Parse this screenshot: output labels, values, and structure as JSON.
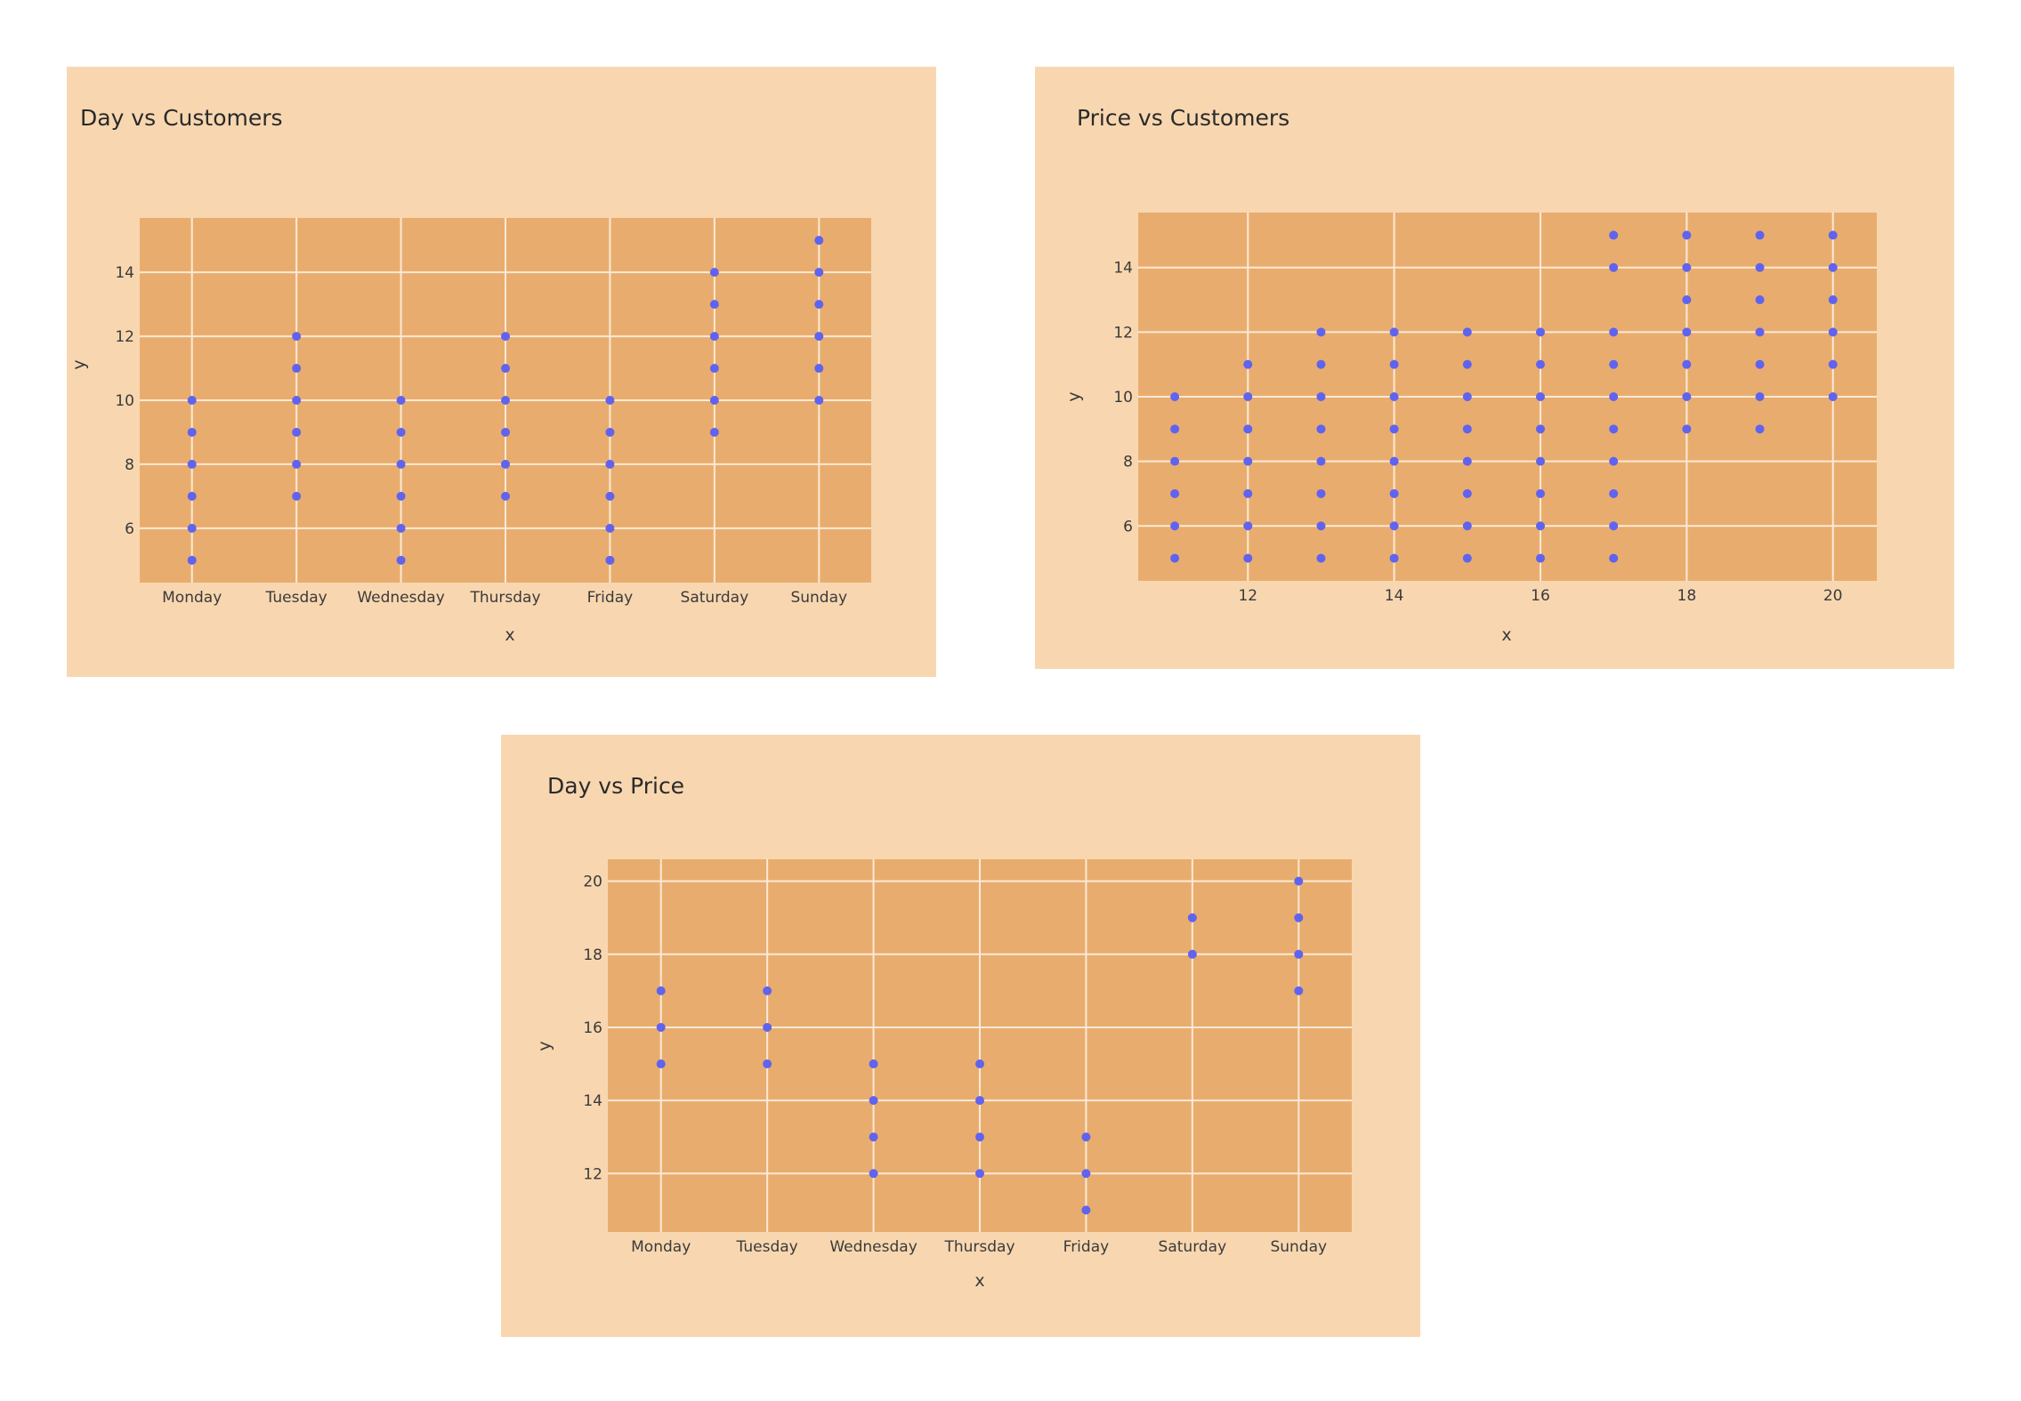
{
  "colors": {
    "panel_bg": "#f8d7b0",
    "plot_bg": "#e8ad6e",
    "grid": "#fbe9d6",
    "marker": "#5f63ef"
  },
  "chart_data": [
    {
      "type": "scatter",
      "title": "Day vs Customers",
      "xlabel": "x",
      "ylabel": "y",
      "x_type": "category",
      "categories": [
        "Monday",
        "Tuesday",
        "Wednesday",
        "Thursday",
        "Friday",
        "Saturday",
        "Sunday"
      ],
      "ylim": [
        4.3,
        15.7
      ],
      "yticks": [
        6,
        8,
        10,
        12,
        14
      ],
      "grid": true,
      "series": [
        {
          "values": [
            [
              "Monday",
              5
            ],
            [
              "Monday",
              6
            ],
            [
              "Monday",
              7
            ],
            [
              "Monday",
              8
            ],
            [
              "Monday",
              9
            ],
            [
              "Monday",
              10
            ],
            [
              "Tuesday",
              7
            ],
            [
              "Tuesday",
              8
            ],
            [
              "Tuesday",
              9
            ],
            [
              "Tuesday",
              10
            ],
            [
              "Tuesday",
              11
            ],
            [
              "Tuesday",
              12
            ],
            [
              "Wednesday",
              5
            ],
            [
              "Wednesday",
              6
            ],
            [
              "Wednesday",
              7
            ],
            [
              "Wednesday",
              8
            ],
            [
              "Wednesday",
              9
            ],
            [
              "Wednesday",
              10
            ],
            [
              "Thursday",
              7
            ],
            [
              "Thursday",
              8
            ],
            [
              "Thursday",
              9
            ],
            [
              "Thursday",
              10
            ],
            [
              "Thursday",
              11
            ],
            [
              "Thursday",
              12
            ],
            [
              "Friday",
              5
            ],
            [
              "Friday",
              6
            ],
            [
              "Friday",
              7
            ],
            [
              "Friday",
              8
            ],
            [
              "Friday",
              9
            ],
            [
              "Friday",
              10
            ],
            [
              "Saturday",
              9
            ],
            [
              "Saturday",
              10
            ],
            [
              "Saturday",
              11
            ],
            [
              "Saturday",
              12
            ],
            [
              "Saturday",
              13
            ],
            [
              "Saturday",
              14
            ],
            [
              "Sunday",
              10
            ],
            [
              "Sunday",
              11
            ],
            [
              "Sunday",
              12
            ],
            [
              "Sunday",
              13
            ],
            [
              "Sunday",
              14
            ],
            [
              "Sunday",
              15
            ]
          ]
        }
      ]
    },
    {
      "type": "scatter",
      "title": "Price vs Customers",
      "xlabel": "x",
      "ylabel": "y",
      "x_type": "linear",
      "xlim": [
        10.5,
        20.6
      ],
      "xticks": [
        12,
        14,
        16,
        18,
        20
      ],
      "ylim": [
        4.3,
        15.7
      ],
      "yticks": [
        6,
        8,
        10,
        12,
        14
      ],
      "grid": true,
      "series": [
        {
          "values": [
            [
              11,
              5
            ],
            [
              11,
              6
            ],
            [
              11,
              7
            ],
            [
              11,
              8
            ],
            [
              11,
              9
            ],
            [
              11,
              10
            ],
            [
              12,
              5
            ],
            [
              12,
              6
            ],
            [
              12,
              7
            ],
            [
              12,
              8
            ],
            [
              12,
              9
            ],
            [
              12,
              10
            ],
            [
              12,
              11
            ],
            [
              13,
              5
            ],
            [
              13,
              6
            ],
            [
              13,
              7
            ],
            [
              13,
              8
            ],
            [
              13,
              9
            ],
            [
              13,
              10
            ],
            [
              13,
              11
            ],
            [
              13,
              12
            ],
            [
              14,
              5
            ],
            [
              14,
              6
            ],
            [
              14,
              7
            ],
            [
              14,
              8
            ],
            [
              14,
              9
            ],
            [
              14,
              10
            ],
            [
              14,
              11
            ],
            [
              14,
              12
            ],
            [
              15,
              5
            ],
            [
              15,
              6
            ],
            [
              15,
              7
            ],
            [
              15,
              8
            ],
            [
              15,
              9
            ],
            [
              15,
              10
            ],
            [
              15,
              11
            ],
            [
              15,
              12
            ],
            [
              16,
              5
            ],
            [
              16,
              6
            ],
            [
              16,
              7
            ],
            [
              16,
              8
            ],
            [
              16,
              9
            ],
            [
              16,
              10
            ],
            [
              16,
              11
            ],
            [
              16,
              12
            ],
            [
              17,
              5
            ],
            [
              17,
              6
            ],
            [
              17,
              7
            ],
            [
              17,
              8
            ],
            [
              17,
              9
            ],
            [
              17,
              10
            ],
            [
              17,
              11
            ],
            [
              17,
              12
            ],
            [
              17,
              14
            ],
            [
              17,
              15
            ],
            [
              18,
              9
            ],
            [
              18,
              10
            ],
            [
              18,
              11
            ],
            [
              18,
              12
            ],
            [
              18,
              13
            ],
            [
              18,
              14
            ],
            [
              18,
              15
            ],
            [
              19,
              9
            ],
            [
              19,
              10
            ],
            [
              19,
              11
            ],
            [
              19,
              12
            ],
            [
              19,
              13
            ],
            [
              19,
              14
            ],
            [
              19,
              15
            ],
            [
              20,
              10
            ],
            [
              20,
              11
            ],
            [
              20,
              12
            ],
            [
              20,
              13
            ],
            [
              20,
              14
            ],
            [
              20,
              15
            ]
          ]
        }
      ]
    },
    {
      "type": "scatter",
      "title": "Day vs Price",
      "xlabel": "x",
      "ylabel": "y",
      "x_type": "category",
      "categories": [
        "Monday",
        "Tuesday",
        "Wednesday",
        "Thursday",
        "Friday",
        "Saturday",
        "Sunday"
      ],
      "ylim": [
        10.4,
        20.6
      ],
      "yticks": [
        12,
        14,
        16,
        18,
        20
      ],
      "grid": true,
      "series": [
        {
          "values": [
            [
              "Monday",
              15
            ],
            [
              "Monday",
              16
            ],
            [
              "Monday",
              17
            ],
            [
              "Tuesday",
              15
            ],
            [
              "Tuesday",
              16
            ],
            [
              "Tuesday",
              17
            ],
            [
              "Wednesday",
              12
            ],
            [
              "Wednesday",
              13
            ],
            [
              "Wednesday",
              14
            ],
            [
              "Wednesday",
              15
            ],
            [
              "Thursday",
              12
            ],
            [
              "Thursday",
              13
            ],
            [
              "Thursday",
              14
            ],
            [
              "Thursday",
              15
            ],
            [
              "Friday",
              11
            ],
            [
              "Friday",
              12
            ],
            [
              "Friday",
              13
            ],
            [
              "Saturday",
              18
            ],
            [
              "Saturday",
              19
            ],
            [
              "Sunday",
              17
            ],
            [
              "Sunday",
              18
            ],
            [
              "Sunday",
              19
            ],
            [
              "Sunday",
              20
            ]
          ]
        }
      ]
    }
  ]
}
